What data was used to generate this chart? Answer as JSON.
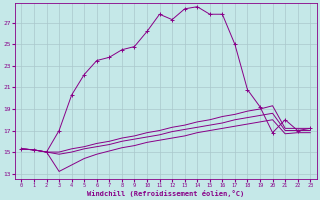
{
  "xlabel": "Windchill (Refroidissement éolien,°C)",
  "background_color": "#c5e8e8",
  "grid_color": "#aac8cc",
  "line_color": "#880088",
  "x_ticks": [
    0,
    1,
    2,
    3,
    4,
    5,
    6,
    7,
    8,
    9,
    10,
    11,
    12,
    13,
    14,
    15,
    16,
    17,
    18,
    19,
    20,
    21,
    22,
    23
  ],
  "ylim": [
    12.5,
    28.8
  ],
  "xlim": [
    -0.5,
    23.5
  ],
  "yticks": [
    13,
    15,
    17,
    19,
    21,
    23,
    25,
    27
  ],
  "series": [
    {
      "x": [
        0,
        1,
        2,
        3,
        4,
        5,
        6,
        7,
        8,
        9,
        10,
        11,
        12,
        13,
        14,
        15,
        16,
        17,
        18,
        19,
        20,
        21,
        22,
        23
      ],
      "y": [
        15.3,
        15.2,
        15.0,
        17.0,
        20.3,
        22.2,
        23.5,
        23.8,
        24.5,
        24.8,
        26.2,
        27.8,
        27.3,
        28.3,
        28.5,
        27.8,
        27.8,
        25.0,
        20.8,
        19.2,
        16.8,
        18.0,
        17.0,
        17.2
      ],
      "marker": true
    },
    {
      "x": [
        0,
        1,
        2,
        3,
        4,
        5,
        6,
        7,
        8,
        9,
        10,
        11,
        12,
        13,
        14,
        15,
        16,
        17,
        18,
        19,
        20,
        21,
        22,
        23
      ],
      "y": [
        15.3,
        15.2,
        15.0,
        15.0,
        15.3,
        15.5,
        15.8,
        16.0,
        16.3,
        16.5,
        16.8,
        17.0,
        17.3,
        17.5,
        17.8,
        18.0,
        18.3,
        18.5,
        18.8,
        19.0,
        19.3,
        17.2,
        17.2,
        17.2
      ],
      "marker": false
    },
    {
      "x": [
        0,
        1,
        2,
        3,
        4,
        5,
        6,
        7,
        8,
        9,
        10,
        11,
        12,
        13,
        14,
        15,
        16,
        17,
        18,
        19,
        20,
        21,
        22,
        23
      ],
      "y": [
        15.3,
        15.2,
        15.0,
        14.8,
        15.0,
        15.3,
        15.5,
        15.7,
        16.0,
        16.2,
        16.4,
        16.6,
        16.9,
        17.1,
        17.3,
        17.5,
        17.7,
        18.0,
        18.2,
        18.4,
        18.6,
        17.0,
        17.0,
        17.0
      ],
      "marker": false
    },
    {
      "x": [
        0,
        1,
        2,
        3,
        4,
        5,
        6,
        7,
        8,
        9,
        10,
        11,
        12,
        13,
        14,
        15,
        16,
        17,
        18,
        19,
        20,
        21,
        22,
        23
      ],
      "y": [
        15.3,
        15.2,
        15.0,
        13.2,
        13.8,
        14.4,
        14.8,
        15.1,
        15.4,
        15.6,
        15.9,
        16.1,
        16.3,
        16.5,
        16.8,
        17.0,
        17.2,
        17.4,
        17.6,
        17.8,
        18.0,
        16.7,
        16.8,
        16.8
      ],
      "marker": false
    }
  ]
}
